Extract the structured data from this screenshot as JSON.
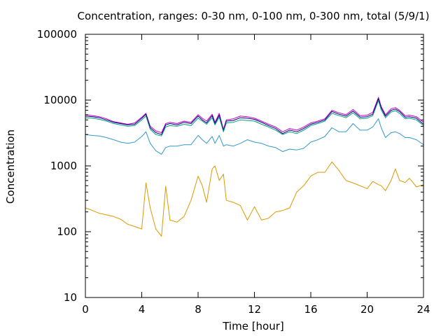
{
  "chart_data": {
    "type": "line",
    "title": "Concentration, ranges: 0-30 nm, 0-100 nm, 0-300 nm, total (5/9/1)",
    "xlabel": "Time [hour]",
    "ylabel": "Concentration",
    "xlim": [
      0,
      24
    ],
    "ylim": [
      10,
      100000
    ],
    "yscale": "log",
    "grid": false,
    "x_ticks": [
      0,
      4,
      8,
      12,
      16,
      20,
      24
    ],
    "y_ticks": [
      10,
      100,
      1000,
      10000,
      100000
    ],
    "x_tick_labels": [
      "0",
      "4",
      "8",
      "12",
      "16",
      "20",
      "24"
    ],
    "y_tick_labels": [
      "10",
      "100",
      "1000",
      "10000",
      "100000"
    ],
    "x": [
      0,
      0.5,
      1,
      1.5,
      2,
      2.5,
      3,
      3.5,
      4,
      4.3,
      4.6,
      5,
      5.4,
      5.7,
      6,
      6.5,
      7,
      7.5,
      8,
      8.3,
      8.6,
      9,
      9.2,
      9.5,
      9.8,
      10,
      10.5,
      11,
      11.5,
      12,
      12.5,
      13,
      13.5,
      14,
      14.5,
      15,
      15.5,
      16,
      16.5,
      17,
      17.5,
      18,
      18.5,
      19,
      19.5,
      20,
      20.4,
      20.8,
      21,
      21.3,
      21.7,
      22,
      22.3,
      22.7,
      23,
      23.5,
      24
    ],
    "series": [
      {
        "color": "#cc00cc",
        "values": [
          6000,
          5800,
          5600,
          5200,
          4700,
          4500,
          4300,
          4500,
          5500,
          6300,
          4000,
          3400,
          3200,
          4400,
          4600,
          4400,
          4800,
          4600,
          6000,
          5300,
          4800,
          6100,
          4600,
          6300,
          3600,
          5000,
          5200,
          5700,
          5600,
          5300,
          4800,
          4300,
          3900,
          3300,
          3700,
          3500,
          3900,
          4500,
          4800,
          5200,
          7000,
          6400,
          6000,
          7200,
          5800,
          5900,
          6500,
          11000,
          8000,
          6000,
          7400,
          7700,
          7000,
          5800,
          5900,
          5600,
          4600
        ]
      },
      {
        "color": "#000080",
        "values": [
          5700,
          5600,
          5400,
          5000,
          4600,
          4400,
          4200,
          4300,
          5300,
          6100,
          3800,
          3200,
          3000,
          4200,
          4400,
          4200,
          4600,
          4400,
          5700,
          5000,
          4500,
          5800,
          4400,
          5900,
          3400,
          4800,
          4900,
          5400,
          5300,
          5100,
          4600,
          4100,
          3700,
          3100,
          3500,
          3300,
          3700,
          4300,
          4600,
          5000,
          6700,
          6100,
          5700,
          6800,
          5500,
          5600,
          6100,
          10500,
          7600,
          5700,
          7000,
          7300,
          6700,
          5500,
          5600,
          5300,
          4300
        ]
      },
      {
        "color": "#00a080",
        "values": [
          5400,
          5300,
          5100,
          4800,
          4400,
          4200,
          4000,
          4100,
          5000,
          5700,
          3600,
          3000,
          2850,
          3900,
          4100,
          4000,
          4300,
          4100,
          5300,
          4800,
          4300,
          5400,
          4200,
          5500,
          3300,
          4500,
          4600,
          5000,
          4900,
          4800,
          4300,
          3900,
          3500,
          3000,
          3300,
          3100,
          3500,
          4100,
          4400,
          4800,
          6300,
          5800,
          5400,
          6400,
          5200,
          5300,
          5800,
          9800,
          7100,
          5400,
          6600,
          6900,
          6300,
          5200,
          5300,
          5000,
          4100
        ]
      },
      {
        "color": "#3399cc",
        "values": [
          3000,
          2900,
          2850,
          2700,
          2500,
          2300,
          2200,
          2300,
          2800,
          3300,
          2200,
          1700,
          1500,
          1900,
          2000,
          2000,
          2100,
          2100,
          2900,
          2500,
          2200,
          2800,
          2200,
          2900,
          2000,
          2100,
          2000,
          2200,
          2500,
          2300,
          2200,
          2000,
          1900,
          1650,
          1800,
          1750,
          1850,
          2300,
          2500,
          2800,
          3800,
          3300,
          3300,
          4400,
          3500,
          3500,
          3900,
          5200,
          3800,
          2700,
          3200,
          3300,
          3100,
          2700,
          2700,
          2500,
          2100
        ]
      },
      {
        "color": "#dd9900",
        "values": [
          230,
          210,
          190,
          180,
          170,
          155,
          130,
          120,
          110,
          550,
          230,
          110,
          85,
          490,
          150,
          140,
          170,
          300,
          700,
          500,
          280,
          900,
          1000,
          600,
          750,
          300,
          280,
          250,
          150,
          240,
          150,
          160,
          200,
          210,
          230,
          400,
          500,
          700,
          800,
          800,
          1150,
          850,
          600,
          550,
          500,
          450,
          580,
          520,
          500,
          420,
          600,
          900,
          600,
          560,
          650,
          480,
          520
        ]
      }
    ]
  }
}
